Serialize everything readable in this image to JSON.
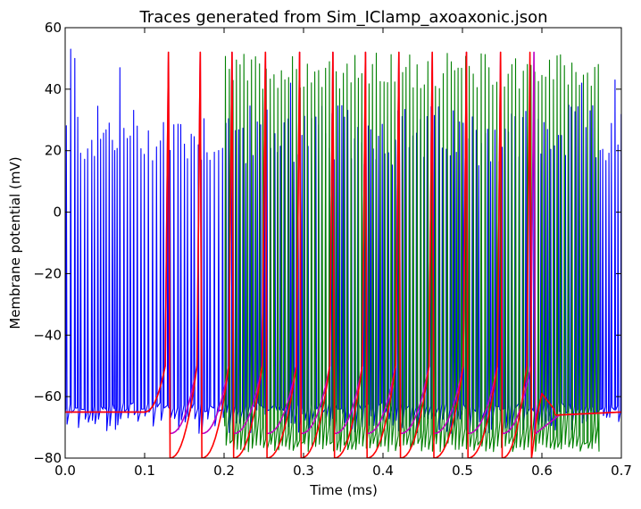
{
  "chart_data": {
    "type": "line",
    "title": "Traces generated from Sim_IClamp_axoaxonic.json",
    "xlabel": "Time (ms)",
    "ylabel": "Membrane potential (mV)",
    "xlim": [
      0.0,
      0.7
    ],
    "ylim": [
      -80,
      60
    ],
    "xticks": [
      "0.0",
      "0.1",
      "0.2",
      "0.3",
      "0.4",
      "0.5",
      "0.6",
      "0.7"
    ],
    "yticks": [
      "60",
      "40",
      "20",
      "0",
      "−20",
      "−40",
      "−60",
      "−80"
    ],
    "grid": false,
    "legend": "none",
    "series": [
      {
        "color": "#0000ff",
        "trace_kind": "dense_irregular_firing",
        "x_range": [
          0.0,
          0.7
        ],
        "spike_peak_mV": [
          15,
          35
        ],
        "trough_mV": [
          -72,
          -62
        ],
        "tallest_spikes": [
          [
            0.006,
            53
          ],
          [
            0.01,
            50
          ],
          [
            0.07,
            47
          ],
          [
            0.69,
            43
          ],
          [
            0.65,
            42
          ],
          [
            0.285,
            42
          ]
        ],
        "baseline_mV": -65
      },
      {
        "color": "#008000",
        "trace_kind": "dense_regular_firing",
        "x_range": [
          0.2,
          0.67
        ],
        "spike_peak_mV": [
          40,
          52
        ],
        "trough_mV": [
          -78,
          -75
        ],
        "baseline_mV": -65
      },
      {
        "color": "#c000c0",
        "trace_kind": "isolated_spikes",
        "baseline_mV": -65,
        "baseline_until": 0.1,
        "peak_mV": 52,
        "after_spike_mV": -72,
        "spike_times": [
          0.13,
          0.17,
          0.21,
          0.252,
          0.295,
          0.337,
          0.378,
          0.42,
          0.462,
          0.505,
          0.548,
          0.59
        ]
      },
      {
        "color": "#ff0000",
        "trace_kind": "isolated_spikes",
        "baseline_mV": -65,
        "baseline_until": 0.1,
        "peak_mV": 52,
        "after_spike_mV": -80,
        "spike_times": [
          0.13,
          0.17,
          0.21,
          0.252,
          0.295,
          0.337,
          0.378,
          0.42,
          0.462,
          0.505,
          0.548,
          0.585
        ],
        "final_bump": [
          0.6,
          -59
        ]
      }
    ]
  }
}
